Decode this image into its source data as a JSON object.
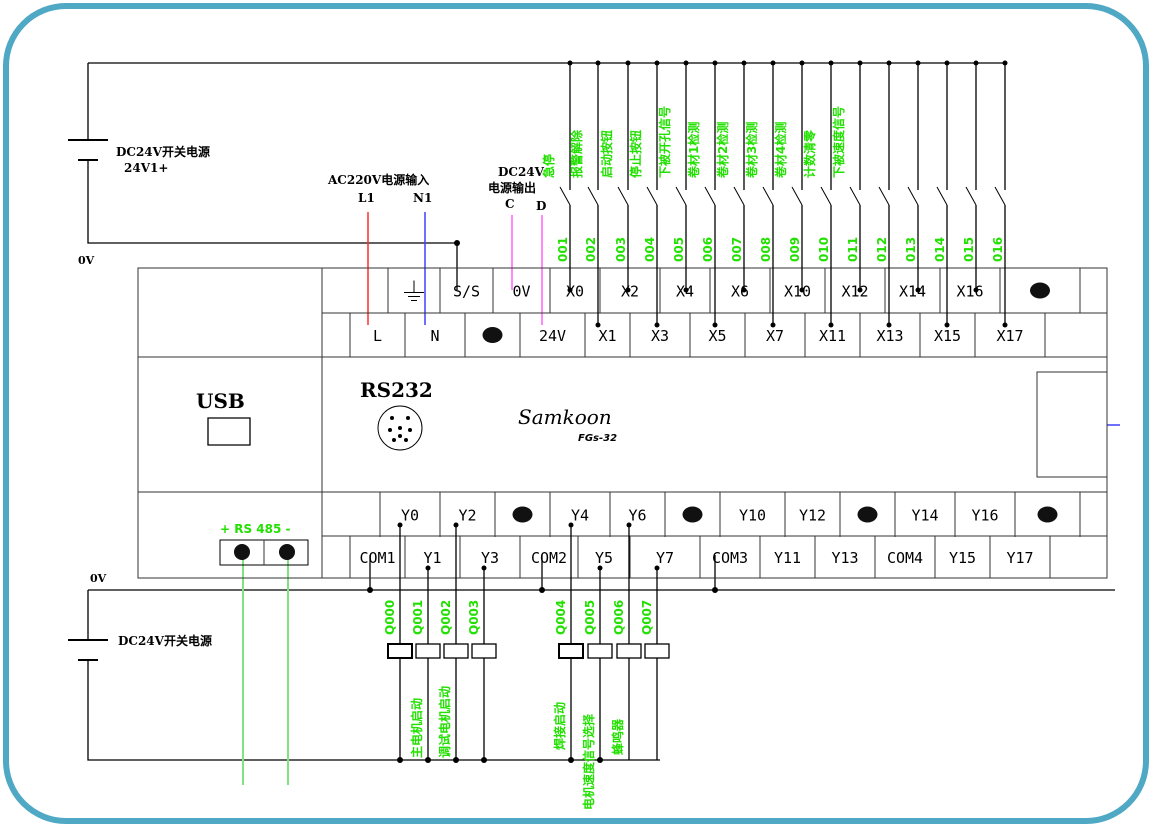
{
  "colors": {
    "frame": "#4fa8c4",
    "label": "#22e000",
    "L_wire": "#ff3030",
    "N_wire": "#4040ff",
    "dc_wire": "#ff60ff",
    "rs485_wire": "#7fe37f"
  },
  "labels": {
    "dc24_top": "DC24V开关电源",
    "dc24_top_sub": "24V1+",
    "ov_top": "0V",
    "ac220": "AC220V电源输入",
    "l1": "L1",
    "n1": "N1",
    "dc24_out_1": "DC24V",
    "dc24_out_2": "电源输出",
    "c": "C",
    "d": "D",
    "usb": "USB",
    "rs232": "RS232",
    "brand": "Samkoon",
    "model": "FGs-32",
    "rs485": "+ RS 485 -",
    "ov_bottom": "0V",
    "dc24_bottom": "DC24V开关电源"
  },
  "top_row": [
    [
      "",
      ""
    ],
    [
      "",
      "ground"
    ],
    [
      "S/S",
      ""
    ],
    [
      "0V",
      ""
    ],
    [
      "X0",
      ""
    ],
    [
      "X2",
      ""
    ],
    [
      "X4",
      ""
    ],
    [
      "X6",
      ""
    ],
    [
      "X10",
      ""
    ],
    [
      "X12",
      ""
    ],
    [
      "X14",
      ""
    ],
    [
      "X16",
      ""
    ],
    [
      "",
      "dot"
    ],
    [
      "",
      ""
    ]
  ],
  "second_row": [
    [
      "",
      ""
    ],
    [
      "L",
      ""
    ],
    [
      "N",
      ""
    ],
    [
      "",
      "dot"
    ],
    [
      "24V",
      ""
    ],
    [
      "X1",
      ""
    ],
    [
      "X3",
      ""
    ],
    [
      "X5",
      ""
    ],
    [
      "X7",
      ""
    ],
    [
      "X11",
      ""
    ],
    [
      "X13",
      ""
    ],
    [
      "X15",
      ""
    ],
    [
      "X17",
      ""
    ],
    [
      "",
      ""
    ]
  ],
  "third_row": [
    [
      "",
      ""
    ],
    [
      "Y0",
      ""
    ],
    [
      "Y2",
      ""
    ],
    [
      "",
      "dot"
    ],
    [
      "Y4",
      ""
    ],
    [
      "Y6",
      ""
    ],
    [
      "",
      "dot"
    ],
    [
      "Y10",
      ""
    ],
    [
      "Y12",
      ""
    ],
    [
      "",
      "dot"
    ],
    [
      "Y14",
      ""
    ],
    [
      "Y16",
      ""
    ],
    [
      "",
      "dot"
    ],
    [
      "",
      ""
    ]
  ],
  "fourth_row": [
    [
      "",
      ""
    ],
    [
      "COM1",
      ""
    ],
    [
      "Y1",
      ""
    ],
    [
      "Y3",
      ""
    ],
    [
      "COM2",
      ""
    ],
    [
      "Y5",
      ""
    ],
    [
      "Y7",
      ""
    ],
    [
      "COM3",
      ""
    ],
    [
      "Y11",
      ""
    ],
    [
      "Y13",
      ""
    ],
    [
      "COM4",
      ""
    ],
    [
      "Y15",
      ""
    ],
    [
      "Y17",
      ""
    ],
    [
      "",
      ""
    ]
  ],
  "inputs": [
    {
      "num": "001",
      "func": "急停"
    },
    {
      "num": "002",
      "func": "报警解除"
    },
    {
      "num": "003",
      "func": "启动按钮"
    },
    {
      "num": "004",
      "func": "停止按钮"
    },
    {
      "num": "005",
      "func": "下被开孔信号"
    },
    {
      "num": "006",
      "func": "卷材1检测"
    },
    {
      "num": "007",
      "func": "卷材2检测"
    },
    {
      "num": "008",
      "func": "卷材3检测"
    },
    {
      "num": "009",
      "func": "卷材4检测"
    },
    {
      "num": "010",
      "func": "计数清零"
    },
    {
      "num": "011",
      "func": "下被速度信号"
    },
    {
      "num": "012",
      "func": ""
    },
    {
      "num": "013",
      "func": ""
    },
    {
      "num": "014",
      "func": ""
    },
    {
      "num": "015",
      "func": ""
    },
    {
      "num": "016",
      "func": ""
    }
  ],
  "outputs": [
    {
      "num": "Q000",
      "func": ""
    },
    {
      "num": "Q001",
      "func": "主电机启动"
    },
    {
      "num": "Q002",
      "func": "调试电机启动"
    },
    {
      "num": "Q003",
      "func": ""
    },
    {
      "num": "Q004",
      "func": "焊接启动"
    },
    {
      "num": "Q005",
      "func": "电机速度信号选择"
    },
    {
      "num": "Q006",
      "func": "蜂鸣器"
    },
    {
      "num": "Q007",
      "func": ""
    }
  ]
}
